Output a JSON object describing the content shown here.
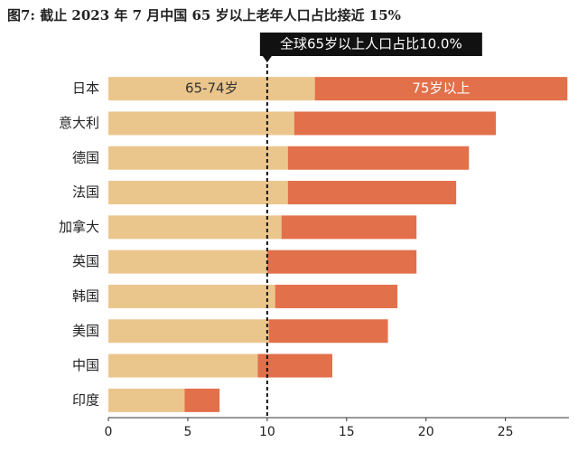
{
  "chart_data": {
    "type": "stacked_bar_horizontal",
    "title": "图7: 截止 2023 年 7 月中国 65 岁以上老年人口占比接近 15%",
    "categories": [
      "日本",
      "意大利",
      "德国",
      "法国",
      "加拿大",
      "英国",
      "韩国",
      "美国",
      "中国",
      "印度"
    ],
    "series": [
      {
        "name": "65-74岁",
        "color": "#ebc68c",
        "values": [
          13.0,
          11.7,
          11.3,
          11.3,
          10.9,
          10.0,
          10.5,
          10.1,
          9.4,
          4.8
        ]
      },
      {
        "name": "75岁以上",
        "color": "#e2704a",
        "values": [
          15.9,
          12.7,
          11.4,
          10.6,
          8.5,
          9.4,
          7.7,
          7.5,
          4.7,
          2.2
        ]
      }
    ],
    "xlim": [
      0,
      29
    ],
    "xticks": [
      0,
      5,
      10,
      15,
      20,
      25
    ],
    "reference_line": {
      "value": 10,
      "label": "全球65岁以上人口占比10.0%"
    }
  }
}
